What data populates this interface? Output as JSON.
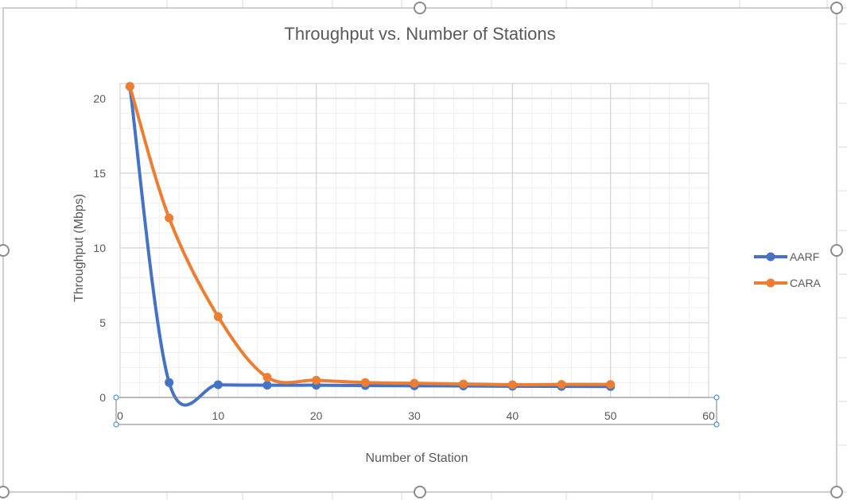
{
  "chart_data": {
    "type": "line",
    "title": "Throughput vs. Number of Stations",
    "xlabel": "Number of Station",
    "ylabel": "Throughput (Mbps)",
    "xlim": [
      0,
      60
    ],
    "ylim": [
      0,
      20
    ],
    "x_ticks": [
      0,
      10,
      20,
      30,
      40,
      50,
      60
    ],
    "y_ticks": [
      0,
      5,
      10,
      15,
      20
    ],
    "grid": true,
    "smooth": true,
    "legend_position": "right",
    "series": [
      {
        "name": "AARF",
        "color": "#4472c4",
        "x": [
          1,
          5,
          10,
          15,
          20,
          25,
          30,
          35,
          40,
          45,
          50
        ],
        "values": [
          20.8,
          1.0,
          0.85,
          0.82,
          0.82,
          0.8,
          0.78,
          0.77,
          0.75,
          0.74,
          0.73
        ]
      },
      {
        "name": "CARA",
        "color": "#ed7d31",
        "x": [
          1,
          5,
          10,
          15,
          20,
          25,
          30,
          35,
          40,
          45,
          50
        ],
        "values": [
          20.8,
          12.0,
          5.4,
          1.35,
          1.15,
          1.0,
          0.95,
          0.9,
          0.85,
          0.87,
          0.87
        ]
      }
    ]
  }
}
